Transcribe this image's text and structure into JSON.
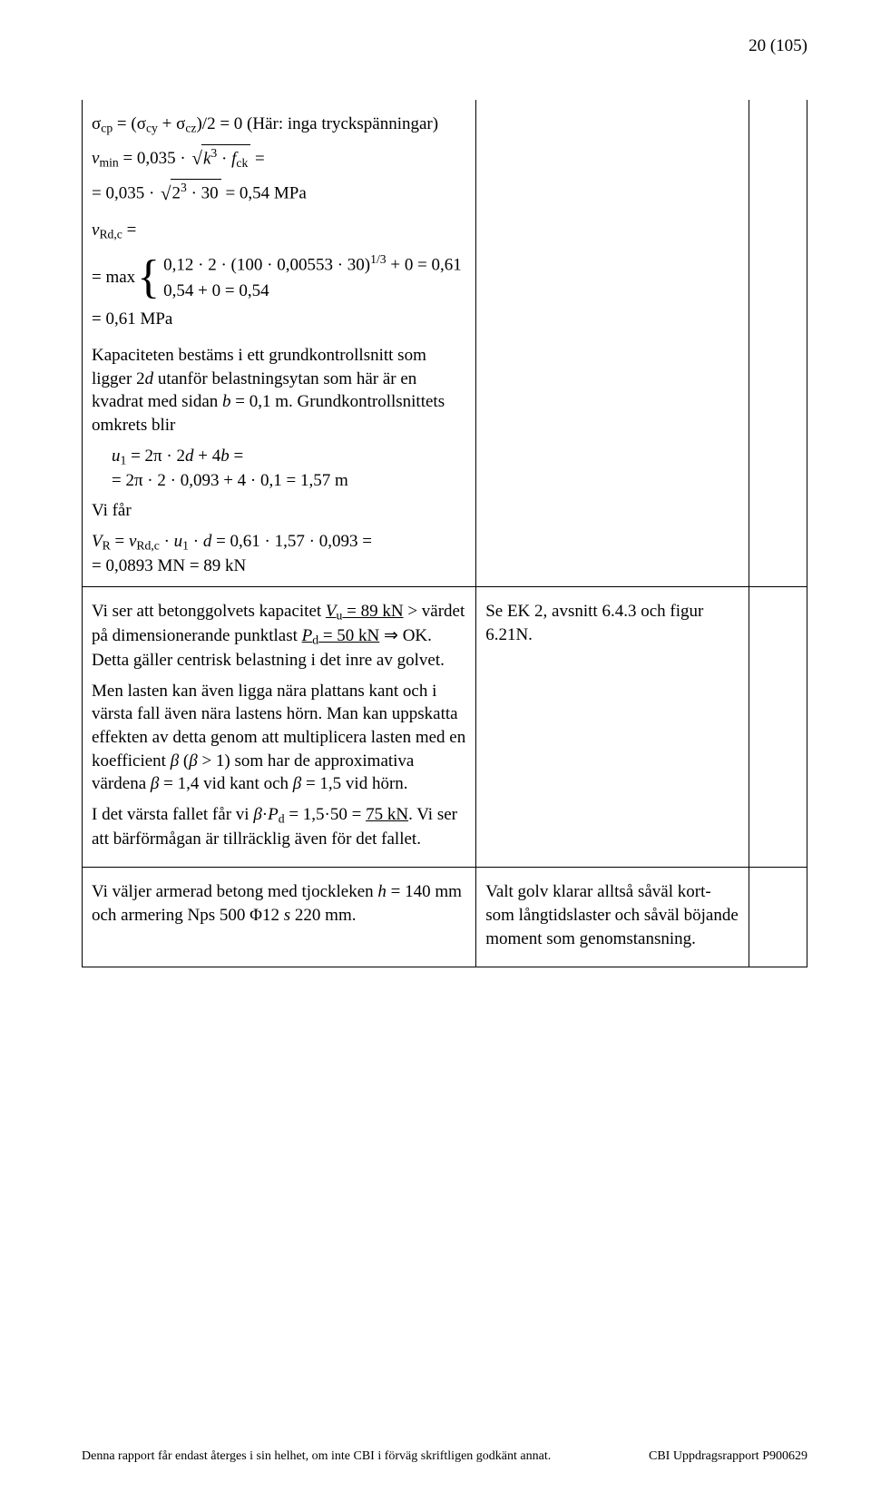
{
  "page_number": "20 (105)",
  "row1": {
    "sigma_line": "σ<sub>cp</sub> = (σ<sub>cy</sub> + σ<sub>cz</sub>)/2 = 0 (Här: inga tryckspänningar)",
    "vmin_lhs": "<span class='it'>v</span><sub>min</sub> = 0,035 · ",
    "vmin_rad": "<span class='it'>k</span><sup>3</sup> · <span class='it'>f</span><sub>ck</sub>",
    "vmin_tail": " =",
    "vmin_2_lhs": "= 0,035 · ",
    "vmin_2_rad": "2<sup>3</sup> · 30",
    "vmin_2_tail": " = 0,54 MPa",
    "vrdc_head": "<span class='it'>v</span><sub>Rd,c</sub> =",
    "max_prefix": "= max",
    "brace_line1": "0,12 · 2 · (100 · 0,00553 · 30)<sup>1/3</sup> + 0 = 0,61",
    "brace_line2": "0,54 + 0 = 0,54",
    "vrdc_result": "= 0,61 MPa",
    "kap_para": "Kapaciteten bestäms i ett grundkontrollsnitt som ligger 2<span class='it'>d</span> utanför belastningsytan som här är en kvadrat med sidan <span class='it'>b</span> = 0,1 m. Grundkontrollsnittets omkrets blir",
    "u1_a": "<span class='it'>u</span><sub>1</sub> = 2π · 2<span class='it'>d</span> + 4<span class='it'>b</span> =",
    "u1_b": "= 2π · 2 · 0,093 + 4 · 0,1 = 1,57 m",
    "vi_far": "Vi får",
    "vr_a": "<span class='it'>V</span><sub>R</sub> = <span class='it'>v</span><sub>Rd,c</sub> · <span class='it'>u</span><sub>1</sub> · <span class='it'>d</span> = 0,61 · 1,57 · 0,093 =",
    "vr_b": "= 0,0893 MN = 89 kN"
  },
  "row2": {
    "p1_a": "Vi ser att betonggolvets kapacitet ",
    "p1_vu": "<span class='it'>V</span><sub>u</sub> = 89 kN",
    "p1_b": " > värdet på dimensionerande punktlast ",
    "p1_pd": "<span class='it'>P</span><sub>d</sub> = 50 kN",
    "p1_c": " ⇒ OK. Detta gäller centrisk belastning i det inre av golvet.",
    "p2": "Men lasten kan även ligga nära plattans kant och i värsta fall även nära lastens hörn. Man kan uppskatta effekten av detta genom att multiplicera lasten med en koefficient <span class='it'>β</span> (<span class='it'>β</span> > 1) som har de approximativa värdena <span class='it'>β</span> = 1,4 vid kant och <span class='it'>β</span> = 1,5 vid hörn.",
    "p3_a": "I det värsta fallet får vi <span class='it'>β</span>·<span class='it'>P</span><sub>d</sub> = 1,5·50 = ",
    "p3_ul": "75 kN",
    "p3_b": ". Vi ser att bärförmågan är tillräcklig även för det fallet.",
    "right": "Se EK 2, avsnitt 6.4.3 och figur 6.21N."
  },
  "row3": {
    "left": "Vi väljer armerad betong med tjockleken <span class='it'>h</span> = 140 mm och armering Nps 500 Φ12 <span class='it'>s</span> 220 mm.",
    "right": "Valt golv klarar alltså såväl kort- som långtidslaster och såväl böjande moment som genomstansning."
  },
  "footer": {
    "left": "Denna rapport får endast återges i sin helhet, om inte CBI i förväg skriftligen godkänt annat.",
    "right": "CBI Uppdragsrapport P900629"
  }
}
